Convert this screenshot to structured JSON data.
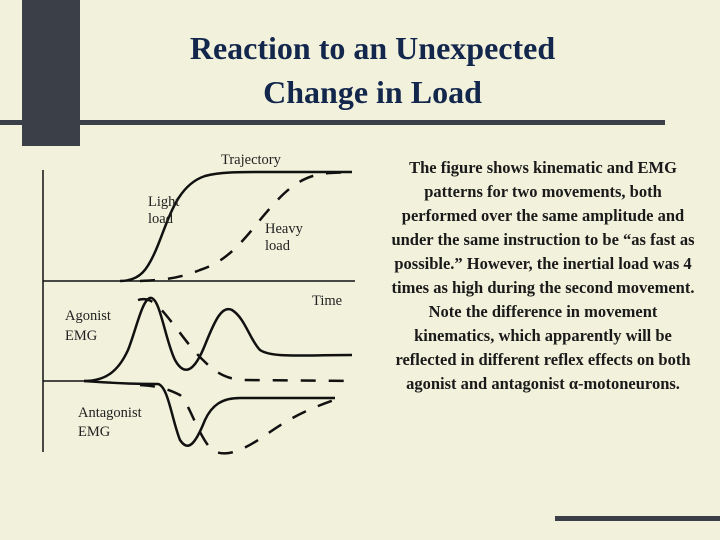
{
  "title": {
    "line1": "Reaction to an Unexpected",
    "line2": "Change in Load"
  },
  "figure": {
    "trajectory_label": "Trajectory",
    "light_load_label": [
      "Light",
      "load"
    ],
    "heavy_load_label": [
      "Heavy",
      "load"
    ],
    "time_label": "Time",
    "agonist_label": [
      "Agonist",
      "EMG"
    ],
    "antagonist_label": [
      "Antagonist",
      "EMG"
    ]
  },
  "description": "The figure shows kinematic and EMG patterns for two movements, both performed over the same amplitude and under the same instruction to be “as fast as possible.” However, the inertial load was 4 times as high during the second movement. Note the difference in movement kinematics, which apparently will be reflected in different reflex effects on both agonist and antagonist α-motoneurons.",
  "colors": {
    "background": "#f1f1dc",
    "title": "#13264c",
    "bars": "#3a3f48"
  }
}
